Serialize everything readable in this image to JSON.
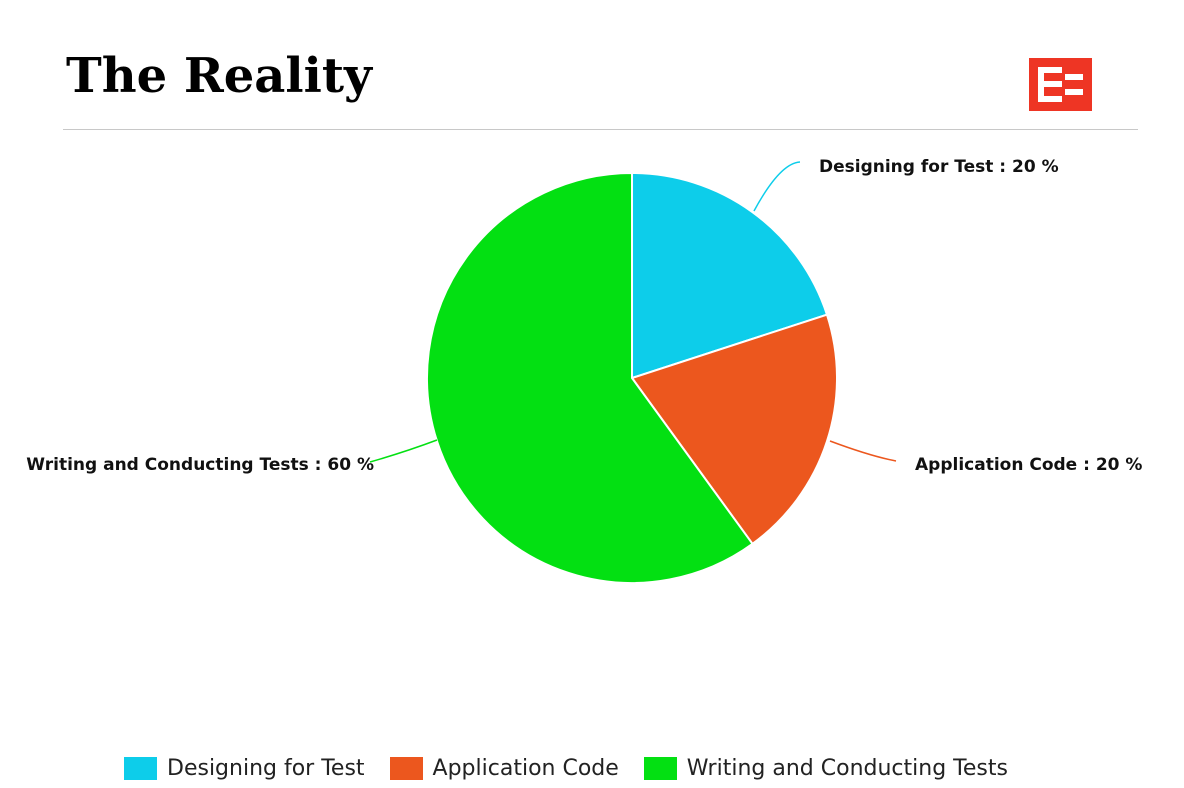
{
  "page": {
    "title": "The Reality"
  },
  "logo": {
    "icon": "e-logo-icon",
    "color": "#ee3524"
  },
  "chart_data": {
    "type": "pie",
    "categories": [
      "Designing for Test",
      "Application Code",
      "Writing and Conducting Tests"
    ],
    "values": [
      20,
      20,
      60
    ],
    "unit": "%",
    "colors": [
      "#0dcdea",
      "#ec571e",
      "#03e012"
    ],
    "labels": [
      "Designing for Test : 20 %",
      "Application Code : 20 %",
      "Writing and Conducting Tests : 60 %"
    ],
    "legend": {
      "placement": "bottom",
      "entries": [
        "Designing for Test",
        "Application Code",
        "Writing and Conducting Tests"
      ]
    },
    "start_angle": "12 o'clock",
    "direction": "clockwise"
  }
}
